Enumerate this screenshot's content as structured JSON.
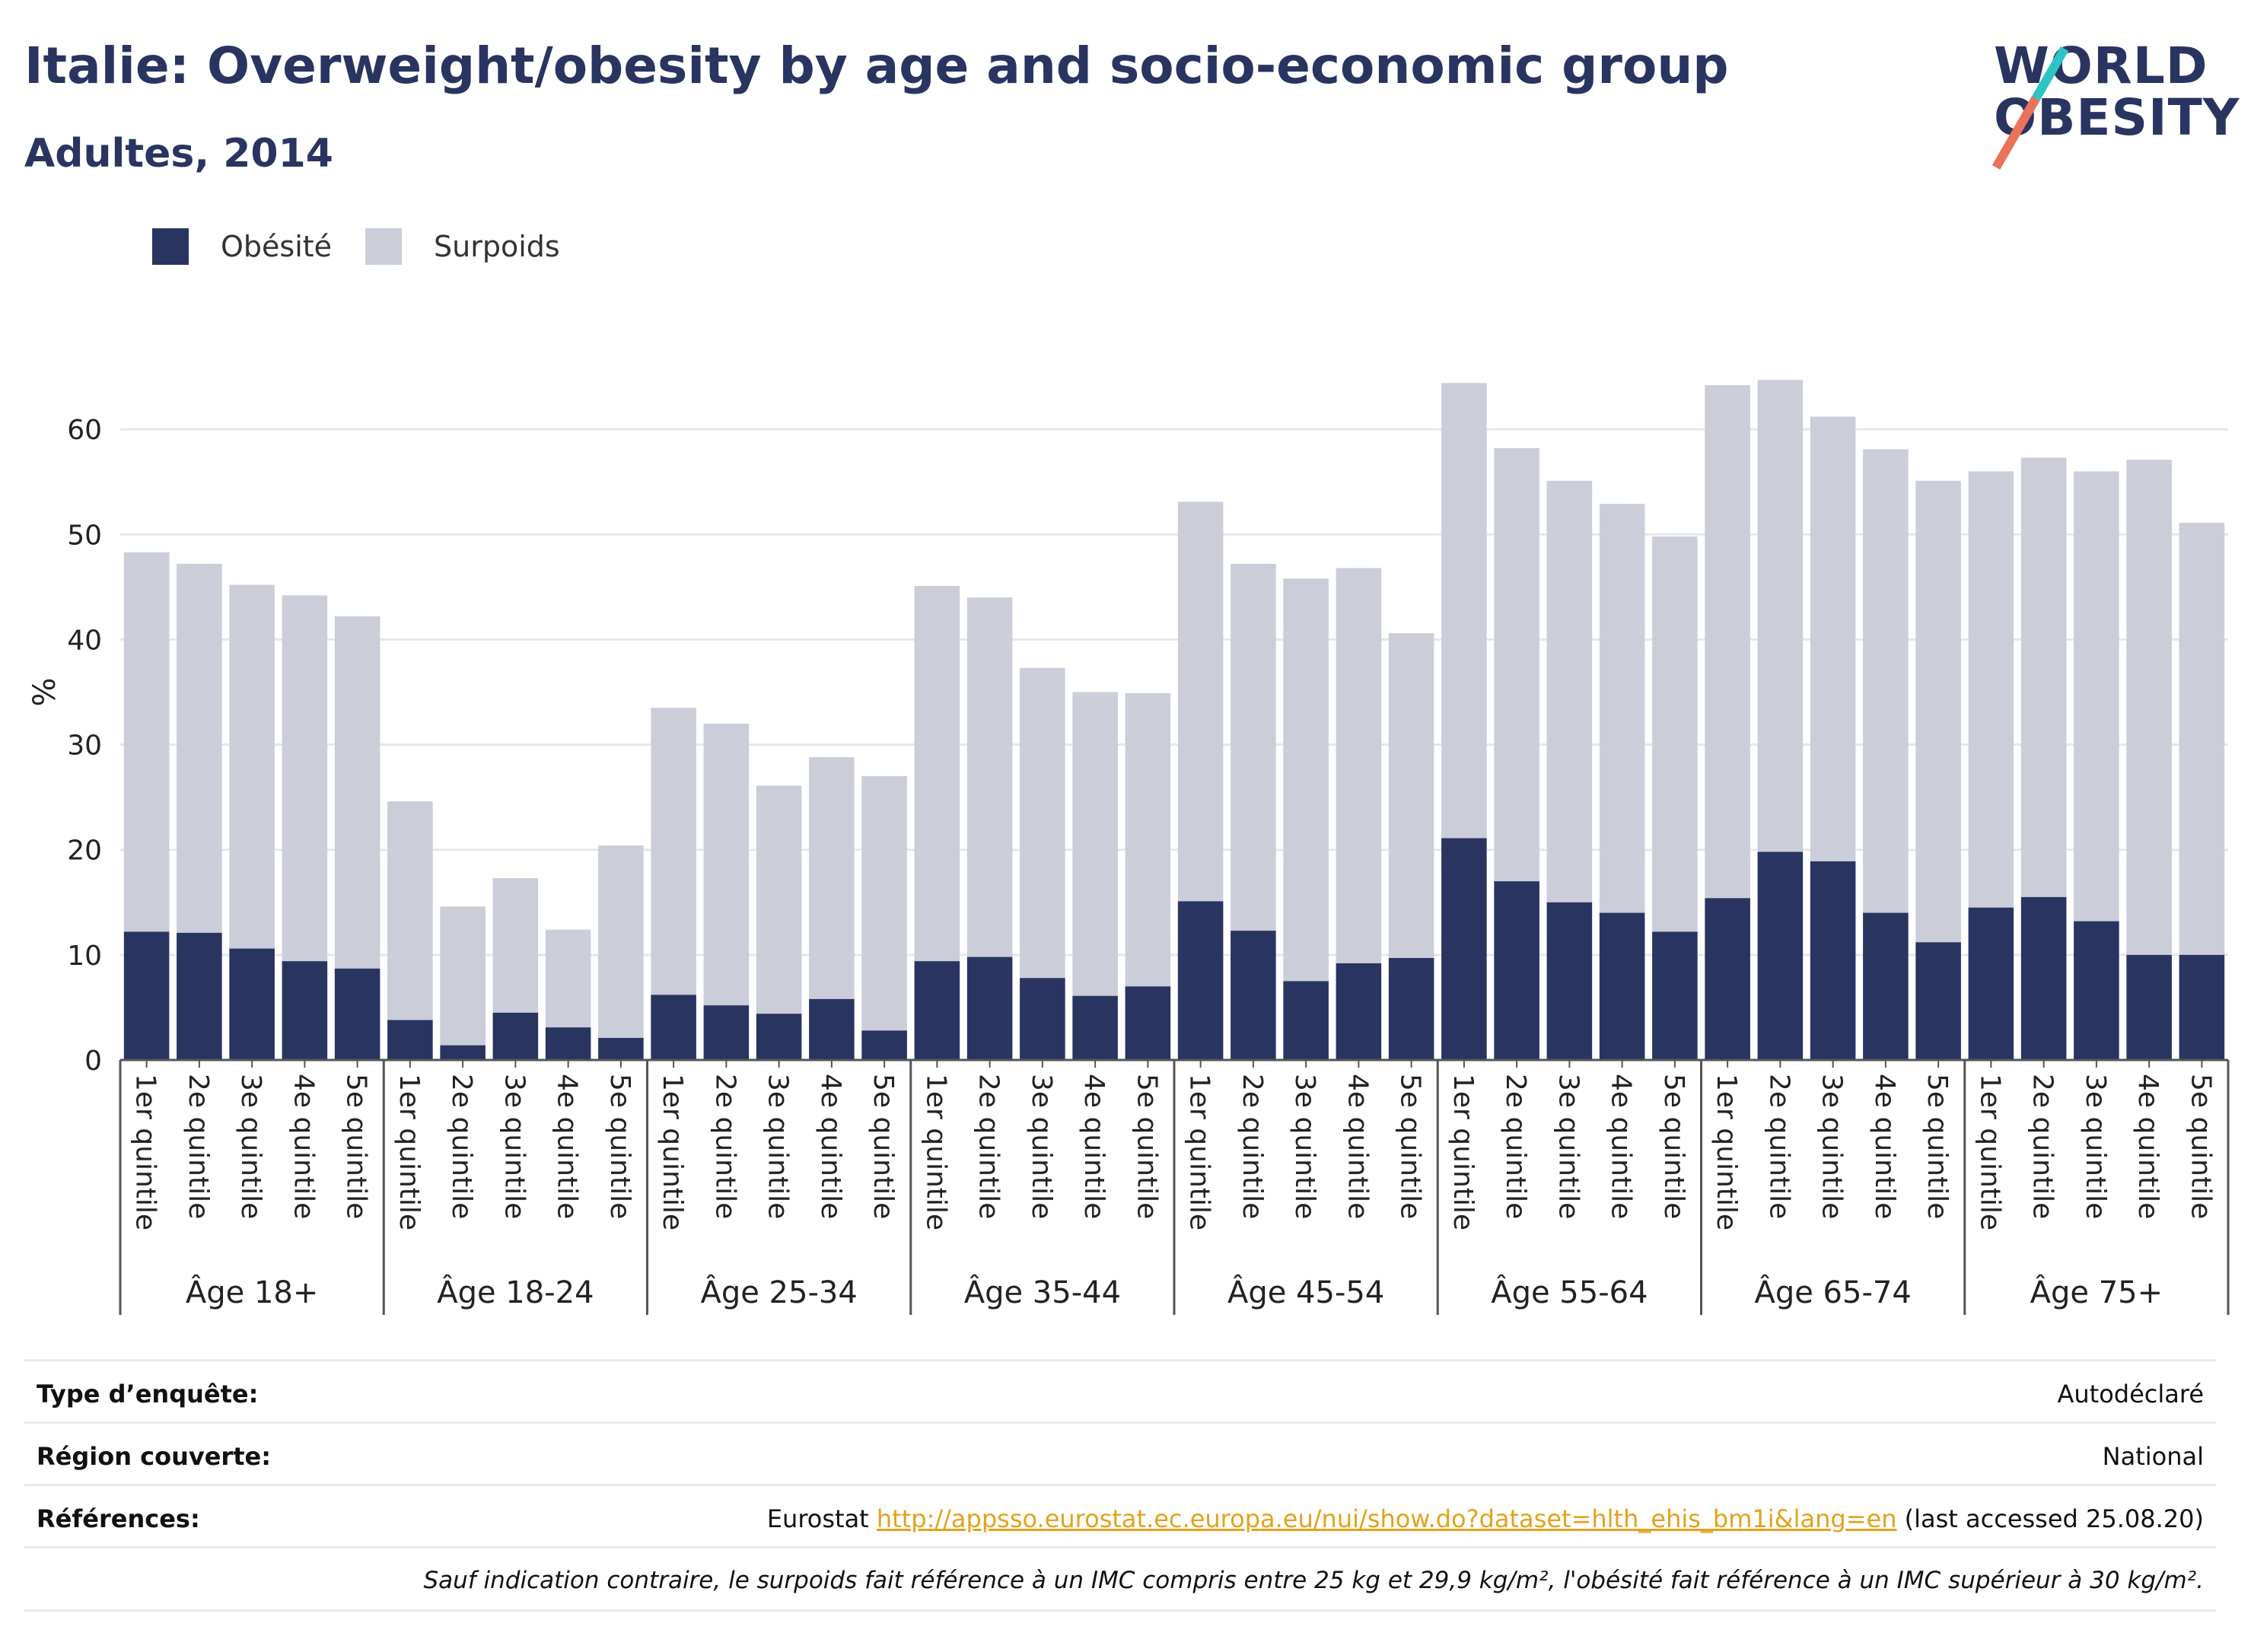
{
  "header": {
    "title": "Italie: Overweight/obesity by age and socio-economic group",
    "subtitle": "Adultes, 2014"
  },
  "logo": {
    "line1": "WORLD",
    "line2": "OBESITY"
  },
  "colors": {
    "obesity": "#2a3461",
    "overweight": "#cbcdd9",
    "grid": "#e6e6ee",
    "axis": "#555555"
  },
  "chart_data": {
    "type": "bar",
    "stacked": true,
    "ylabel": "%",
    "ylim": [
      0,
      70
    ],
    "yticks": [
      0,
      10,
      20,
      30,
      40,
      50,
      60
    ],
    "grid": true,
    "legend_placement": "top-left",
    "series_names": [
      "Obésité",
      "Surpoids"
    ],
    "groups": [
      {
        "label": "Âge 18+",
        "bars": [
          {
            "category": "1er quintile",
            "obesity": 12.2,
            "total": 48.3
          },
          {
            "category": "2e quintile",
            "obesity": 12.1,
            "total": 47.2
          },
          {
            "category": "3e quintile",
            "obesity": 10.6,
            "total": 45.2
          },
          {
            "category": "4e quintile",
            "obesity": 9.4,
            "total": 44.2
          },
          {
            "category": "5e quintile",
            "obesity": 8.7,
            "total": 42.2
          }
        ]
      },
      {
        "label": "Âge 18-24",
        "bars": [
          {
            "category": "1er quintile",
            "obesity": 3.8,
            "total": 24.6
          },
          {
            "category": "2e quintile",
            "obesity": 1.4,
            "total": 14.6
          },
          {
            "category": "3e quintile",
            "obesity": 4.5,
            "total": 17.3
          },
          {
            "category": "4e quintile",
            "obesity": 3.1,
            "total": 12.4
          },
          {
            "category": "5e quintile",
            "obesity": 2.1,
            "total": 20.4
          }
        ]
      },
      {
        "label": "Âge 25-34",
        "bars": [
          {
            "category": "1er quintile",
            "obesity": 6.2,
            "total": 33.5
          },
          {
            "category": "2e quintile",
            "obesity": 5.2,
            "total": 32.0
          },
          {
            "category": "3e quintile",
            "obesity": 4.4,
            "total": 26.1
          },
          {
            "category": "4e quintile",
            "obesity": 5.8,
            "total": 28.8
          },
          {
            "category": "5e quintile",
            "obesity": 2.8,
            "total": 27.0
          }
        ]
      },
      {
        "label": "Âge 35-44",
        "bars": [
          {
            "category": "1er quintile",
            "obesity": 9.4,
            "total": 45.1
          },
          {
            "category": "2e quintile",
            "obesity": 9.8,
            "total": 44.0
          },
          {
            "category": "3e quintile",
            "obesity": 7.8,
            "total": 37.3
          },
          {
            "category": "4e quintile",
            "obesity": 6.1,
            "total": 35.0
          },
          {
            "category": "5e quintile",
            "obesity": 7.0,
            "total": 34.9
          }
        ]
      },
      {
        "label": "Âge 45-54",
        "bars": [
          {
            "category": "1er quintile",
            "obesity": 15.1,
            "total": 53.1
          },
          {
            "category": "2e quintile",
            "obesity": 12.3,
            "total": 47.2
          },
          {
            "category": "3e quintile",
            "obesity": 7.5,
            "total": 45.8
          },
          {
            "category": "4e quintile",
            "obesity": 9.2,
            "total": 46.8
          },
          {
            "category": "5e quintile",
            "obesity": 9.7,
            "total": 40.6
          }
        ]
      },
      {
        "label": "Âge 55-64",
        "bars": [
          {
            "category": "1er quintile",
            "obesity": 21.1,
            "total": 64.4
          },
          {
            "category": "2e quintile",
            "obesity": 17.0,
            "total": 58.2
          },
          {
            "category": "3e quintile",
            "obesity": 15.0,
            "total": 55.1
          },
          {
            "category": "4e quintile",
            "obesity": 14.0,
            "total": 52.9
          },
          {
            "category": "5e quintile",
            "obesity": 12.2,
            "total": 49.8
          }
        ]
      },
      {
        "label": "Âge 65-74",
        "bars": [
          {
            "category": "1er quintile",
            "obesity": 15.4,
            "total": 64.2
          },
          {
            "category": "2e quintile",
            "obesity": 19.8,
            "total": 64.7
          },
          {
            "category": "3e quintile",
            "obesity": 18.9,
            "total": 61.2
          },
          {
            "category": "4e quintile",
            "obesity": 14.0,
            "total": 58.1
          },
          {
            "category": "5e quintile",
            "obesity": 11.2,
            "total": 55.1
          }
        ]
      },
      {
        "label": "Âge 75+",
        "bars": [
          {
            "category": "1er quintile",
            "obesity": 14.5,
            "total": 56.0
          },
          {
            "category": "2e quintile",
            "obesity": 15.5,
            "total": 57.3
          },
          {
            "category": "3e quintile",
            "obesity": 13.2,
            "total": 56.0
          },
          {
            "category": "4e quintile",
            "obesity": 10.0,
            "total": 57.1
          },
          {
            "category": "5e quintile",
            "obesity": 10.0,
            "total": 51.1
          }
        ]
      }
    ]
  },
  "info": {
    "survey_type_label": "Type d’enquête:",
    "survey_type_value": "Autodéclaré",
    "region_label": "Région couverte:",
    "region_value": "National",
    "references_label": "Références:",
    "references_source": "Eurostat",
    "references_link": "http://appsso.eurostat.ec.europa.eu/nui/show.do?dataset=hlth_ehis_bm1i&lang=en",
    "references_accessed": "(last accessed 25.08.20)",
    "footnote": "Sauf indication contraire, le surpoids fait référence à un IMC compris entre 25 kg et 29,9 kg/m², l'obésité fait référence à un IMC supérieur à 30 kg/m²."
  }
}
